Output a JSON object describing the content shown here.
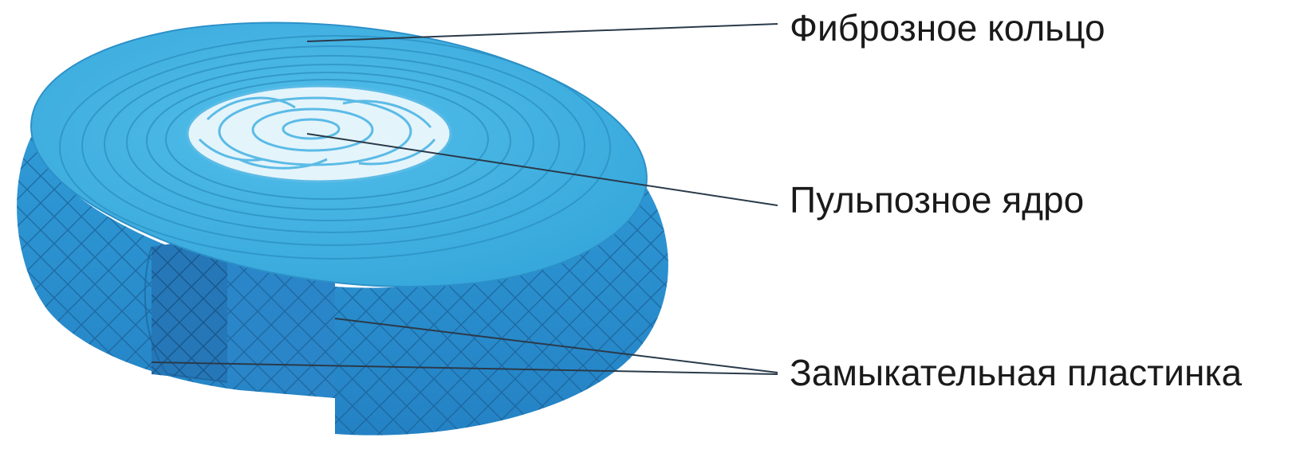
{
  "diagram": {
    "labels": {
      "annulus_fibrosus": "Фиброзное кольцо",
      "nucleus_pulposus": "Пульпозное ядро",
      "end_plate": "Замыкательная пластинка"
    },
    "colors": {
      "top_surface": "#3fb0e0",
      "top_rings": "#2a8ec0",
      "side_wall": "#2a8fd0",
      "side_wall_dark": "#1f78b8",
      "mesh_lines": "#1a5f95",
      "nucleus_fill": "#e8f6fc",
      "nucleus_lines": "#6cc3e8",
      "leader_lines": "#2a3a4a",
      "text": "#1a1a1a"
    }
  }
}
